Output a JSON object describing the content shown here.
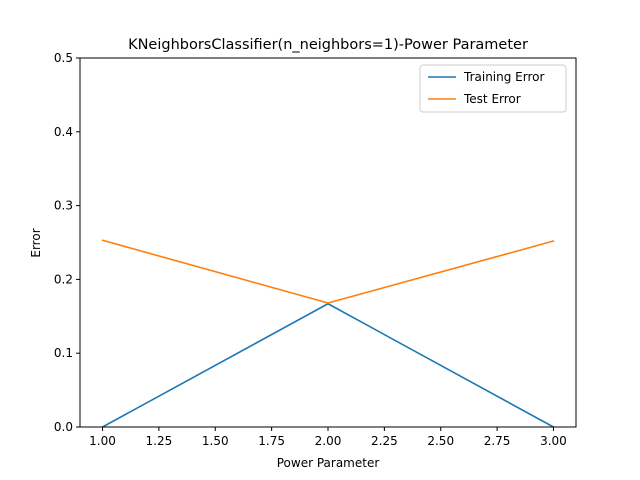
{
  "chart_data": {
    "type": "line",
    "title": "KNeighborsClassifier(n_neighbors=1)-Power Parameter",
    "xlabel": "Power Parameter",
    "ylabel": "Error",
    "xlim": [
      0.9,
      3.1
    ],
    "ylim": [
      0,
      0.5
    ],
    "xticks": [
      1.0,
      1.25,
      1.5,
      1.75,
      2.0,
      2.25,
      2.5,
      2.75,
      3.0
    ],
    "xtick_labels": [
      "1.00",
      "1.25",
      "1.50",
      "1.75",
      "2.00",
      "2.25",
      "2.50",
      "2.75",
      "3.00"
    ],
    "yticks": [
      0.0,
      0.1,
      0.2,
      0.3,
      0.4,
      0.5
    ],
    "ytick_labels": [
      "0.0",
      "0.1",
      "0.2",
      "0.3",
      "0.4",
      "0.5"
    ],
    "grid": false,
    "legend_position": "top-right",
    "x": [
      1.0,
      2.0,
      3.0
    ],
    "series": [
      {
        "name": "Training Error",
        "color": "#1f77b4",
        "values": [
          0.0,
          0.167,
          0.0
        ]
      },
      {
        "name": "Test Error",
        "color": "#ff7f0e",
        "values": [
          0.253,
          0.168,
          0.252
        ]
      }
    ]
  }
}
